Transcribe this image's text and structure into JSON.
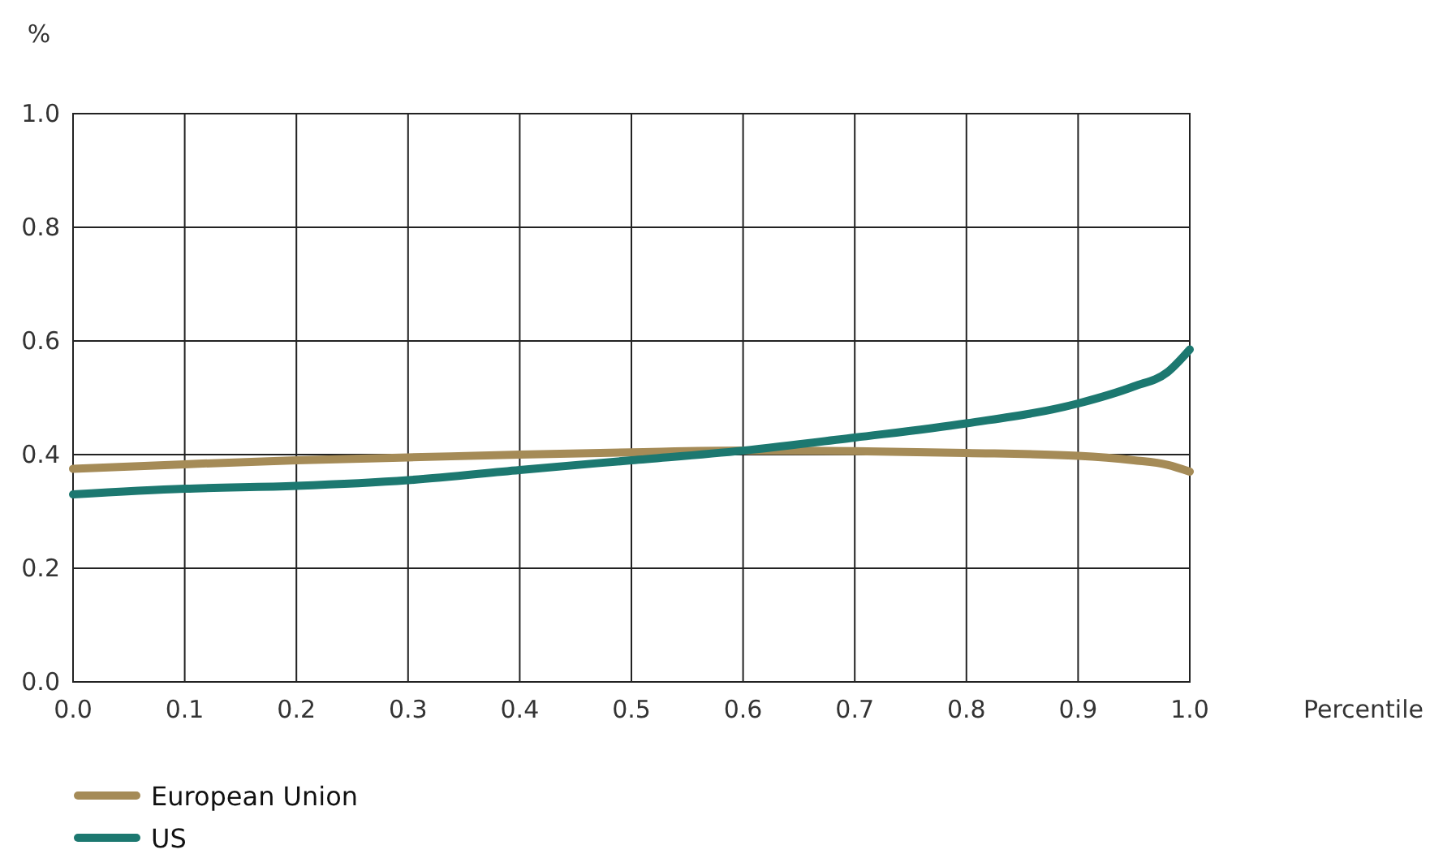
{
  "chart_data": {
    "type": "line",
    "ylabel": "%",
    "xlabel": "Percentile",
    "xlim": [
      0,
      1
    ],
    "ylim": [
      0,
      1
    ],
    "xticks": [
      {
        "value": 0,
        "label": "0.0"
      },
      0.1,
      0.2,
      0.3,
      0.4,
      0.5,
      0.6,
      0.7,
      0.8,
      0.9,
      {
        "value": 1,
        "label": "1.0"
      }
    ],
    "yticks": [
      {
        "value": 0,
        "label": "0.0"
      },
      0.2,
      0.4,
      0.6,
      0.8,
      {
        "value": 1,
        "label": "1.0"
      }
    ],
    "grid": true,
    "legend": "bottom left",
    "line_style": "solid",
    "x": [
      0,
      0.1,
      0.2,
      0.3,
      0.4,
      0.5,
      0.6,
      0.7,
      0.8,
      0.9,
      0.95,
      0.98,
      1
    ],
    "series": [
      {
        "name": "European Union",
        "color": "#a58b57",
        "values": [
          0.375,
          0.383,
          0.39,
          0.395,
          0.4,
          0.404,
          0.407,
          0.406,
          0.403,
          0.398,
          0.39,
          0.382,
          0.37
        ]
      },
      {
        "name": "US",
        "color": "#1c7870",
        "values": [
          0.33,
          0.34,
          0.345,
          0.355,
          0.373,
          0.39,
          0.407,
          0.43,
          0.455,
          0.49,
          0.52,
          0.545,
          0.585
        ]
      }
    ]
  }
}
